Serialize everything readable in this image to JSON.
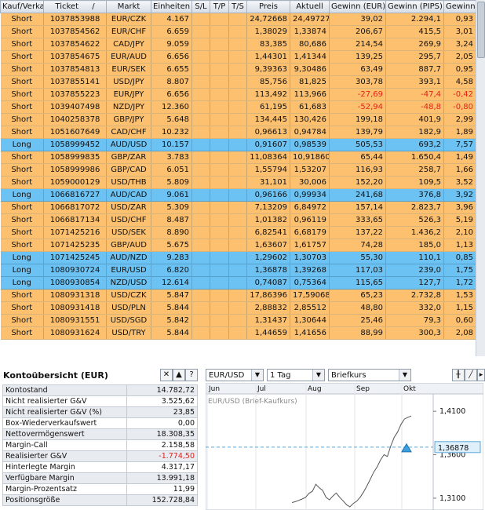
{
  "positions": {
    "columns": [
      "Kauf/Verkauf",
      "Ticket",
      "Markt",
      "Einheiten",
      "S/L",
      "T/P",
      "T/S",
      "Preis",
      "Aktuell",
      "Gewinn (EUR)",
      "Gewinn (PIPS)",
      "Gewinn (%)"
    ],
    "sort_indicator": "/",
    "rows": [
      {
        "type": "Short",
        "ticket": "1037853988",
        "markt": "EUR/CZK",
        "einheiten": "4.167",
        "sl": "",
        "tp": "",
        "ts": "",
        "preis": "24,72668",
        "aktuell": "24,49727",
        "gewinn_eur": "39,02",
        "gewinn_pips": "2.294,1",
        "gewinn_pct": "0,93"
      },
      {
        "type": "Short",
        "ticket": "1037854562",
        "markt": "EUR/CHF",
        "einheiten": "6.659",
        "sl": "",
        "tp": "",
        "ts": "",
        "preis": "1,38029",
        "aktuell": "1,33874",
        "gewinn_eur": "206,67",
        "gewinn_pips": "415,5",
        "gewinn_pct": "3,01"
      },
      {
        "type": "Short",
        "ticket": "1037854622",
        "markt": "CAD/JPY",
        "einheiten": "9.059",
        "sl": "",
        "tp": "",
        "ts": "",
        "preis": "83,385",
        "aktuell": "80,686",
        "gewinn_eur": "214,54",
        "gewinn_pips": "269,9",
        "gewinn_pct": "3,24"
      },
      {
        "type": "Short",
        "ticket": "1037854675",
        "markt": "EUR/AUD",
        "einheiten": "6.656",
        "sl": "",
        "tp": "",
        "ts": "",
        "preis": "1,44301",
        "aktuell": "1,41344",
        "gewinn_eur": "139,25",
        "gewinn_pips": "295,7",
        "gewinn_pct": "2,05"
      },
      {
        "type": "Short",
        "ticket": "1037854813",
        "markt": "EUR/SEK",
        "einheiten": "6.655",
        "sl": "",
        "tp": "",
        "ts": "",
        "preis": "9,39363",
        "aktuell": "9,30486",
        "gewinn_eur": "63,49",
        "gewinn_pips": "887,7",
        "gewinn_pct": "0,95"
      },
      {
        "type": "Short",
        "ticket": "1037855141",
        "markt": "USD/JPY",
        "einheiten": "8.807",
        "sl": "",
        "tp": "",
        "ts": "",
        "preis": "85,756",
        "aktuell": "81,825",
        "gewinn_eur": "303,78",
        "gewinn_pips": "393,1",
        "gewinn_pct": "4,58"
      },
      {
        "type": "Short",
        "ticket": "1037855223",
        "markt": "EUR/JPY",
        "einheiten": "6.656",
        "sl": "",
        "tp": "",
        "ts": "",
        "preis": "113,492",
        "aktuell": "113,966",
        "gewinn_eur": "-27,69",
        "gewinn_pips": "-47,4",
        "gewinn_pct": "-0,42"
      },
      {
        "type": "Short",
        "ticket": "1039407498",
        "markt": "NZD/JPY",
        "einheiten": "12.360",
        "sl": "",
        "tp": "",
        "ts": "",
        "preis": "61,195",
        "aktuell": "61,683",
        "gewinn_eur": "-52,94",
        "gewinn_pips": "-48,8",
        "gewinn_pct": "-0,80"
      },
      {
        "type": "Short",
        "ticket": "1040258378",
        "markt": "GBP/JPY",
        "einheiten": "5.648",
        "sl": "",
        "tp": "",
        "ts": "",
        "preis": "134,445",
        "aktuell": "130,426",
        "gewinn_eur": "199,18",
        "gewinn_pips": "401,9",
        "gewinn_pct": "2,99"
      },
      {
        "type": "Short",
        "ticket": "1051607649",
        "markt": "CAD/CHF",
        "einheiten": "10.232",
        "sl": "",
        "tp": "",
        "ts": "",
        "preis": "0,96613",
        "aktuell": "0,94784",
        "gewinn_eur": "139,79",
        "gewinn_pips": "182,9",
        "gewinn_pct": "1,89"
      },
      {
        "type": "Long",
        "ticket": "1058999452",
        "markt": "AUD/USD",
        "einheiten": "10.157",
        "sl": "",
        "tp": "",
        "ts": "",
        "preis": "0,91607",
        "aktuell": "0,98539",
        "gewinn_eur": "505,53",
        "gewinn_pips": "693,2",
        "gewinn_pct": "7,57"
      },
      {
        "type": "Short",
        "ticket": "1058999835",
        "markt": "GBP/ZAR",
        "einheiten": "3.783",
        "sl": "",
        "tp": "",
        "ts": "",
        "preis": "11,08364",
        "aktuell": "10,91860",
        "gewinn_eur": "65,44",
        "gewinn_pips": "1.650,4",
        "gewinn_pct": "1,49"
      },
      {
        "type": "Short",
        "ticket": "1058999986",
        "markt": "GBP/CAD",
        "einheiten": "6.051",
        "sl": "",
        "tp": "",
        "ts": "",
        "preis": "1,55794",
        "aktuell": "1,53207",
        "gewinn_eur": "116,93",
        "gewinn_pips": "258,7",
        "gewinn_pct": "1,66"
      },
      {
        "type": "Short",
        "ticket": "1059000129",
        "markt": "USD/THB",
        "einheiten": "5.809",
        "sl": "",
        "tp": "",
        "ts": "",
        "preis": "31,101",
        "aktuell": "30,006",
        "gewinn_eur": "152,20",
        "gewinn_pips": "109,5",
        "gewinn_pct": "3,52"
      },
      {
        "type": "Long",
        "ticket": "1066816727",
        "markt": "AUD/CAD",
        "einheiten": "9.061",
        "sl": "",
        "tp": "",
        "ts": "",
        "preis": "0,96166",
        "aktuell": "0,99934",
        "gewinn_eur": "241,68",
        "gewinn_pips": "376,8",
        "gewinn_pct": "3,92"
      },
      {
        "type": "Short",
        "ticket": "1066817072",
        "markt": "USD/ZAR",
        "einheiten": "5.309",
        "sl": "",
        "tp": "",
        "ts": "",
        "preis": "7,13209",
        "aktuell": "6,84972",
        "gewinn_eur": "157,14",
        "gewinn_pips": "2.823,7",
        "gewinn_pct": "3,96"
      },
      {
        "type": "Short",
        "ticket": "1066817134",
        "markt": "USD/CHF",
        "einheiten": "8.487",
        "sl": "",
        "tp": "",
        "ts": "",
        "preis": "1,01382",
        "aktuell": "0,96119",
        "gewinn_eur": "333,65",
        "gewinn_pips": "526,3",
        "gewinn_pct": "5,19"
      },
      {
        "type": "Short",
        "ticket": "1071425216",
        "markt": "USD/SEK",
        "einheiten": "8.890",
        "sl": "",
        "tp": "",
        "ts": "",
        "preis": "6,82541",
        "aktuell": "6,68179",
        "gewinn_eur": "137,22",
        "gewinn_pips": "1.436,2",
        "gewinn_pct": "2,10"
      },
      {
        "type": "Short",
        "ticket": "1071425235",
        "markt": "GBP/AUD",
        "einheiten": "5.675",
        "sl": "",
        "tp": "",
        "ts": "",
        "preis": "1,63607",
        "aktuell": "1,61757",
        "gewinn_eur": "74,28",
        "gewinn_pips": "185,0",
        "gewinn_pct": "1,13"
      },
      {
        "type": "Long",
        "ticket": "1071425245",
        "markt": "AUD/NZD",
        "einheiten": "9.283",
        "sl": "",
        "tp": "",
        "ts": "",
        "preis": "1,29602",
        "aktuell": "1,30703",
        "gewinn_eur": "55,30",
        "gewinn_pips": "110,1",
        "gewinn_pct": "0,85"
      },
      {
        "type": "Long",
        "ticket": "1080930724",
        "markt": "EUR/USD",
        "einheiten": "6.820",
        "sl": "",
        "tp": "",
        "ts": "",
        "preis": "1,36878",
        "aktuell": "1,39268",
        "gewinn_eur": "117,03",
        "gewinn_pips": "239,0",
        "gewinn_pct": "1,75"
      },
      {
        "type": "Long",
        "ticket": "1080930854",
        "markt": "NZD/USD",
        "einheiten": "12.614",
        "sl": "",
        "tp": "",
        "ts": "",
        "preis": "0,74087",
        "aktuell": "0,75364",
        "gewinn_eur": "115,65",
        "gewinn_pips": "127,7",
        "gewinn_pct": "1,72"
      },
      {
        "type": "Short",
        "ticket": "1080931318",
        "markt": "USD/CZK",
        "einheiten": "5.847",
        "sl": "",
        "tp": "",
        "ts": "",
        "preis": "17,86396",
        "aktuell": "17,59068",
        "gewinn_eur": "65,23",
        "gewinn_pips": "2.732,8",
        "gewinn_pct": "1,53"
      },
      {
        "type": "Short",
        "ticket": "1080931418",
        "markt": "USD/PLN",
        "einheiten": "5.844",
        "sl": "",
        "tp": "",
        "ts": "",
        "preis": "2,88832",
        "aktuell": "2,85512",
        "gewinn_eur": "48,80",
        "gewinn_pips": "332,0",
        "gewinn_pct": "1,15"
      },
      {
        "type": "Short",
        "ticket": "1080931551",
        "markt": "USD/SGD",
        "einheiten": "5.842",
        "sl": "",
        "tp": "",
        "ts": "",
        "preis": "1,31437",
        "aktuell": "1,30644",
        "gewinn_eur": "25,46",
        "gewinn_pips": "79,3",
        "gewinn_pct": "0,60"
      },
      {
        "type": "Short",
        "ticket": "1080931624",
        "markt": "USD/TRY",
        "einheiten": "5.844",
        "sl": "",
        "tp": "",
        "ts": "",
        "preis": "1,44659",
        "aktuell": "1,41656",
        "gewinn_eur": "88,99",
        "gewinn_pips": "300,3",
        "gewinn_pct": "2,08"
      }
    ]
  },
  "account": {
    "title": "Kontoübersicht (EUR)",
    "controls": {
      "close": "✕",
      "up": "▲",
      "help": "?"
    },
    "rows": [
      {
        "label": "Kontostand",
        "value": "14.782,72"
      },
      {
        "label": "Nicht realisierter G&V",
        "value": "3.525,62"
      },
      {
        "label": "Nicht realisierter G&V (%)",
        "value": "23,85"
      },
      {
        "label": "Box-Wiederverkaufswert",
        "value": "0,00"
      },
      {
        "label": "Nettovermögenswert",
        "value": "18.308,35"
      },
      {
        "label": "Margin-Call",
        "value": "2.158,58"
      },
      {
        "label": "Realisierter G&V",
        "value": "-1.774,50"
      },
      {
        "label": "Hinterlegte Margin",
        "value": "4.317,17"
      },
      {
        "label": "Verfügbare Margin",
        "value": "13.991,18"
      },
      {
        "label": "Margin-Prozentsatz",
        "value": "11,99"
      },
      {
        "label": "Positionsgröße",
        "value": "152.728,84"
      }
    ]
  },
  "chart": {
    "instrument": "EUR/USD",
    "timeframe": "1 Tag",
    "price_type": "Briefkurs",
    "overlay_label": "EUR/USD (Brief-Kaufkurs)",
    "current_price": "1,36878",
    "colors": {
      "accent": "#5aa7d8",
      "line": "#555555",
      "marker": "#3aa0e0",
      "negative": "#e2221a",
      "short_row": "#fdc06e",
      "long_row": "#6cc2f2"
    }
  },
  "chart_data": {
    "type": "line",
    "months": [
      "Jun",
      "Jul",
      "Aug",
      "Sep",
      "Okt"
    ],
    "y_tick_labels": [
      "1,4100",
      "1,3600",
      "1,3100"
    ],
    "y_ticks": [
      1.41,
      1.36,
      1.31
    ],
    "ylim": [
      1.3,
      1.43
    ],
    "current_price": 1.36878,
    "series": [
      {
        "values": [
          1.305,
          1.306,
          1.3075,
          1.309,
          1.311,
          1.3155,
          1.318,
          1.326,
          1.322,
          1.319,
          1.311,
          1.308,
          1.3125,
          1.316,
          1.311,
          1.307,
          1.3025,
          1.3,
          1.304,
          1.3065,
          1.311,
          1.317,
          1.324,
          1.332,
          1.34,
          1.346,
          1.354,
          1.36,
          1.358,
          1.37,
          1.38,
          1.386,
          1.395,
          1.401,
          1.403,
          1.4045
        ]
      }
    ]
  }
}
